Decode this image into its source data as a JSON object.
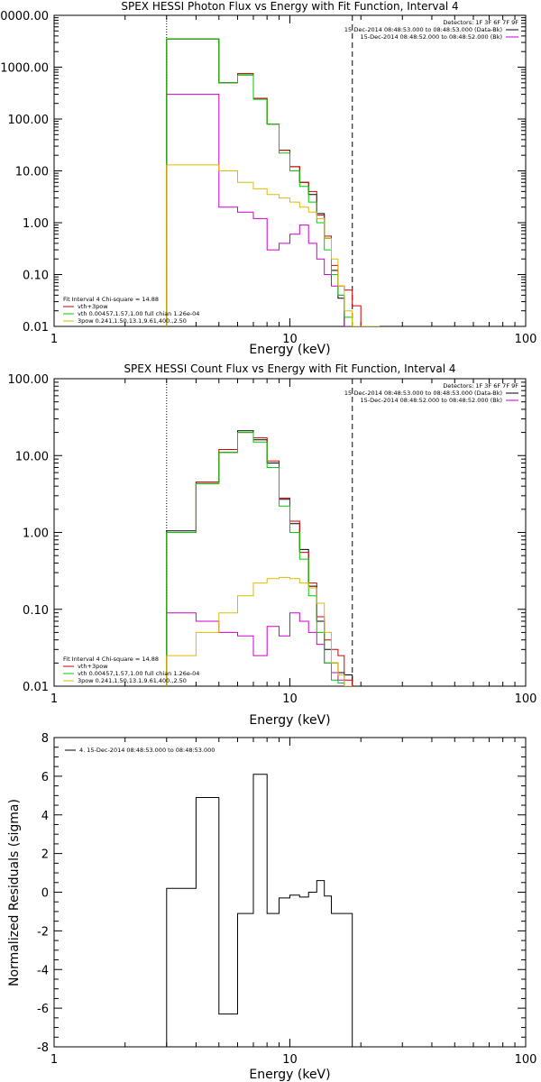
{
  "chart_data": [
    {
      "type": "line",
      "title": "SPEX HESSI Photon Flux vs Energy with Fit Function, Interval 4",
      "xlabel": "Energy (keV)",
      "ylabel": "",
      "xscale": "log",
      "yscale": "log",
      "xlim": [
        1,
        100
      ],
      "ylim": [
        0.01,
        10000
      ],
      "xticks": [
        "1",
        "10",
        "100"
      ],
      "yticks": [
        {
          "v": 10000,
          "label": "10000.00"
        },
        {
          "v": 1000,
          "label": "1000.00"
        },
        {
          "v": 100,
          "label": "100.00"
        },
        {
          "v": 10,
          "label": "10.00"
        },
        {
          "v": 1,
          "label": "1.00"
        },
        {
          "v": 0.1,
          "label": "0.10"
        },
        {
          "v": 0.01,
          "label": "0.01"
        }
      ],
      "vlines": [
        {
          "x": 3.0,
          "style": "dotted"
        },
        {
          "x": 18.4,
          "style": "dashed"
        }
      ],
      "legend_top": {
        "placement": "top-right",
        "header": "Detectors: 1F 3F 6F 7F 9F",
        "entries": [
          {
            "text": "15-Dec-2014 08:48:53.000 to 08:48:53.000 (Data-Bk)",
            "color": "#000000"
          },
          {
            "text": "15-Dec-2014 08:48:52.000 to 08:48:52.000 (Bk)",
            "color": "#cc00cc"
          }
        ]
      },
      "legend_bottom": {
        "placement": "bottom-left",
        "header": "Fit Interval 4   Chi-square = 14.88",
        "entries": [
          {
            "text": "vth+3pow",
            "color": "#cc0000"
          },
          {
            "text": "vth 0.00457,1.57,1.00  full chian 1.26e-04",
            "color": "#00cc00"
          },
          {
            "text": "3pow 0.241,1.50,13.1,9.61,400.,2.50",
            "color": "#ddbb00"
          }
        ]
      },
      "edges": [
        3.0,
        4.0,
        5.0,
        6.0,
        7.0,
        8.0,
        9.0,
        10.0,
        11.0,
        12.0,
        13.0,
        14.0,
        15.0,
        16.0,
        17.0,
        18.4,
        20.0,
        22.0,
        24.0
      ],
      "series": [
        {
          "name": "Data-Bk",
          "color": "#000000",
          "values": [
            3500,
            3500,
            500,
            750,
            250,
            80,
            25,
            12,
            6,
            3.5,
            1.5,
            0.5,
            0.12,
            0.035,
            0.01,
            0.01,
            0.01,
            0.01
          ]
        },
        {
          "name": "Bk",
          "color": "#cc00cc",
          "values": [
            300,
            300,
            2,
            1.6,
            1.2,
            0.3,
            0.4,
            0.6,
            0.9,
            0.4,
            0.2,
            0.1,
            0.06,
            0.04,
            0.01,
            0.01,
            0.01,
            0.01
          ]
        },
        {
          "name": "vth+3pow",
          "color": "#cc0000",
          "values": [
            3500,
            3500,
            500,
            750,
            250,
            80,
            25,
            12,
            6,
            4,
            1.4,
            0.55,
            0.15,
            0.06,
            0.05,
            0.025,
            0.01,
            0.01
          ]
        },
        {
          "name": "vth",
          "color": "#00cc00",
          "values": [
            3500,
            3500,
            500,
            700,
            240,
            80,
            22,
            10,
            5,
            2.5,
            1.0,
            0.3,
            0.1,
            0.04,
            0.015,
            0.01,
            0.01,
            0.01
          ]
        },
        {
          "name": "3pow",
          "color": "#ddbb00",
          "values": [
            13,
            13,
            10,
            6,
            4.5,
            3.5,
            3.0,
            2.5,
            2.0,
            1.6,
            1.2,
            0.5,
            0.2,
            0.06,
            0.02,
            0.01,
            0.01,
            0.01
          ]
        }
      ]
    },
    {
      "type": "line",
      "title": "SPEX HESSI Count Flux vs Energy with Fit Function, Interval 4",
      "xlabel": "Energy (keV)",
      "ylabel": "",
      "xscale": "log",
      "yscale": "log",
      "xlim": [
        1,
        100
      ],
      "ylim": [
        0.01,
        100
      ],
      "xticks": [
        "1",
        "10",
        "100"
      ],
      "yticks": [
        {
          "v": 100,
          "label": "100.00"
        },
        {
          "v": 10,
          "label": "10.00"
        },
        {
          "v": 1,
          "label": "1.00"
        },
        {
          "v": 0.1,
          "label": "0.10"
        },
        {
          "v": 0.01,
          "label": "0.01"
        }
      ],
      "vlines": [
        {
          "x": 3.0,
          "style": "dotted"
        },
        {
          "x": 18.4,
          "style": "dashed"
        }
      ],
      "legend_top": {
        "placement": "top-right",
        "header": "Detectors: 1F 3F 6F 7F 9F",
        "entries": [
          {
            "text": "15-Dec-2014 08:48:53.000 to 08:48:53.000 (Data-Bk)",
            "color": "#000000"
          },
          {
            "text": "15-Dec-2014 08:48:52.000 to 08:48:52.000 (Bk)",
            "color": "#cc00cc"
          }
        ]
      },
      "legend_bottom": {
        "placement": "bottom-left",
        "header": "Fit Interval 4   Chi-square = 14.88",
        "entries": [
          {
            "text": "vth+3pow",
            "color": "#cc0000"
          },
          {
            "text": "vth 0.00457,1.57,1.00  full chian 1.26e-04",
            "color": "#00cc00"
          },
          {
            "text": "3pow 0.241,1.50,13.1,9.61,400.,2.50",
            "color": "#ddbb00"
          }
        ]
      },
      "edges": [
        3.0,
        4.0,
        5.0,
        6.0,
        7.0,
        8.0,
        9.0,
        10.0,
        11.0,
        12.0,
        13.0,
        14.0,
        15.0,
        16.0,
        17.0,
        18.4
      ],
      "series": [
        {
          "name": "Data-Bk",
          "color": "#000000",
          "values": [
            1.05,
            4.5,
            11,
            21,
            16,
            8,
            2.7,
            1.3,
            0.6,
            0.2,
            0.07,
            0.03,
            0.02,
            0.015,
            0.014
          ]
        },
        {
          "name": "Bk",
          "color": "#cc00cc",
          "values": [
            0.09,
            0.07,
            0.05,
            0.045,
            0.025,
            0.06,
            0.045,
            0.09,
            0.07,
            0.05,
            0.035,
            0.02,
            0.015,
            0.012,
            0.01
          ]
        },
        {
          "name": "vth+3pow",
          "color": "#cc0000",
          "values": [
            1.0,
            4.5,
            12,
            20,
            17,
            8.5,
            2.8,
            1.4,
            0.55,
            0.22,
            0.08,
            0.04,
            0.03,
            0.025,
            0.012
          ]
        },
        {
          "name": "vth",
          "color": "#00cc00",
          "values": [
            1.0,
            4.3,
            11,
            20,
            15,
            7,
            2.2,
            1.0,
            0.45,
            0.15,
            0.05,
            0.02,
            0.012,
            0.011,
            0.01
          ]
        },
        {
          "name": "3pow",
          "color": "#ddbb00",
          "values": [
            0.025,
            0.05,
            0.09,
            0.15,
            0.22,
            0.25,
            0.26,
            0.25,
            0.22,
            0.19,
            0.12,
            0.05,
            0.02,
            0.014,
            0.01
          ]
        }
      ]
    },
    {
      "type": "line",
      "title": "",
      "xlabel": "Energy (keV)",
      "ylabel": "Normalized Residuals (sigma)",
      "xscale": "log",
      "yscale": "linear",
      "xlim": [
        1,
        100
      ],
      "ylim": [
        -8,
        8
      ],
      "xticks": [
        "1",
        "10",
        "100"
      ],
      "yticks": [
        {
          "v": 8,
          "label": "8"
        },
        {
          "v": 6,
          "label": "6"
        },
        {
          "v": 4,
          "label": "4"
        },
        {
          "v": 2,
          "label": "2"
        },
        {
          "v": 0,
          "label": "0"
        },
        {
          "v": -2,
          "label": "-2"
        },
        {
          "v": -4,
          "label": "-4"
        },
        {
          "v": -6,
          "label": "-6"
        },
        {
          "v": -8,
          "label": "-8"
        }
      ],
      "legend_top": {
        "placement": "top-left",
        "entries": [
          {
            "text": "4. 15-Dec-2014 08:48:53.000 to 08:48:53.000",
            "color": "#000000"
          }
        ]
      },
      "edges": [
        3.0,
        4.0,
        5.0,
        6.0,
        7.0,
        8.0,
        9.0,
        10.0,
        11.0,
        12.0,
        13.0,
        14.0,
        15.0,
        16.0,
        17.0,
        18.4
      ],
      "series": [
        {
          "name": "residuals",
          "color": "#000000",
          "values": [
            0.2,
            4.9,
            -6.3,
            -1.1,
            6.1,
            -1.1,
            -0.3,
            -0.15,
            -0.25,
            0.0,
            0.6,
            -0.2,
            -1.1,
            -1.1,
            -1.1
          ]
        }
      ]
    }
  ]
}
